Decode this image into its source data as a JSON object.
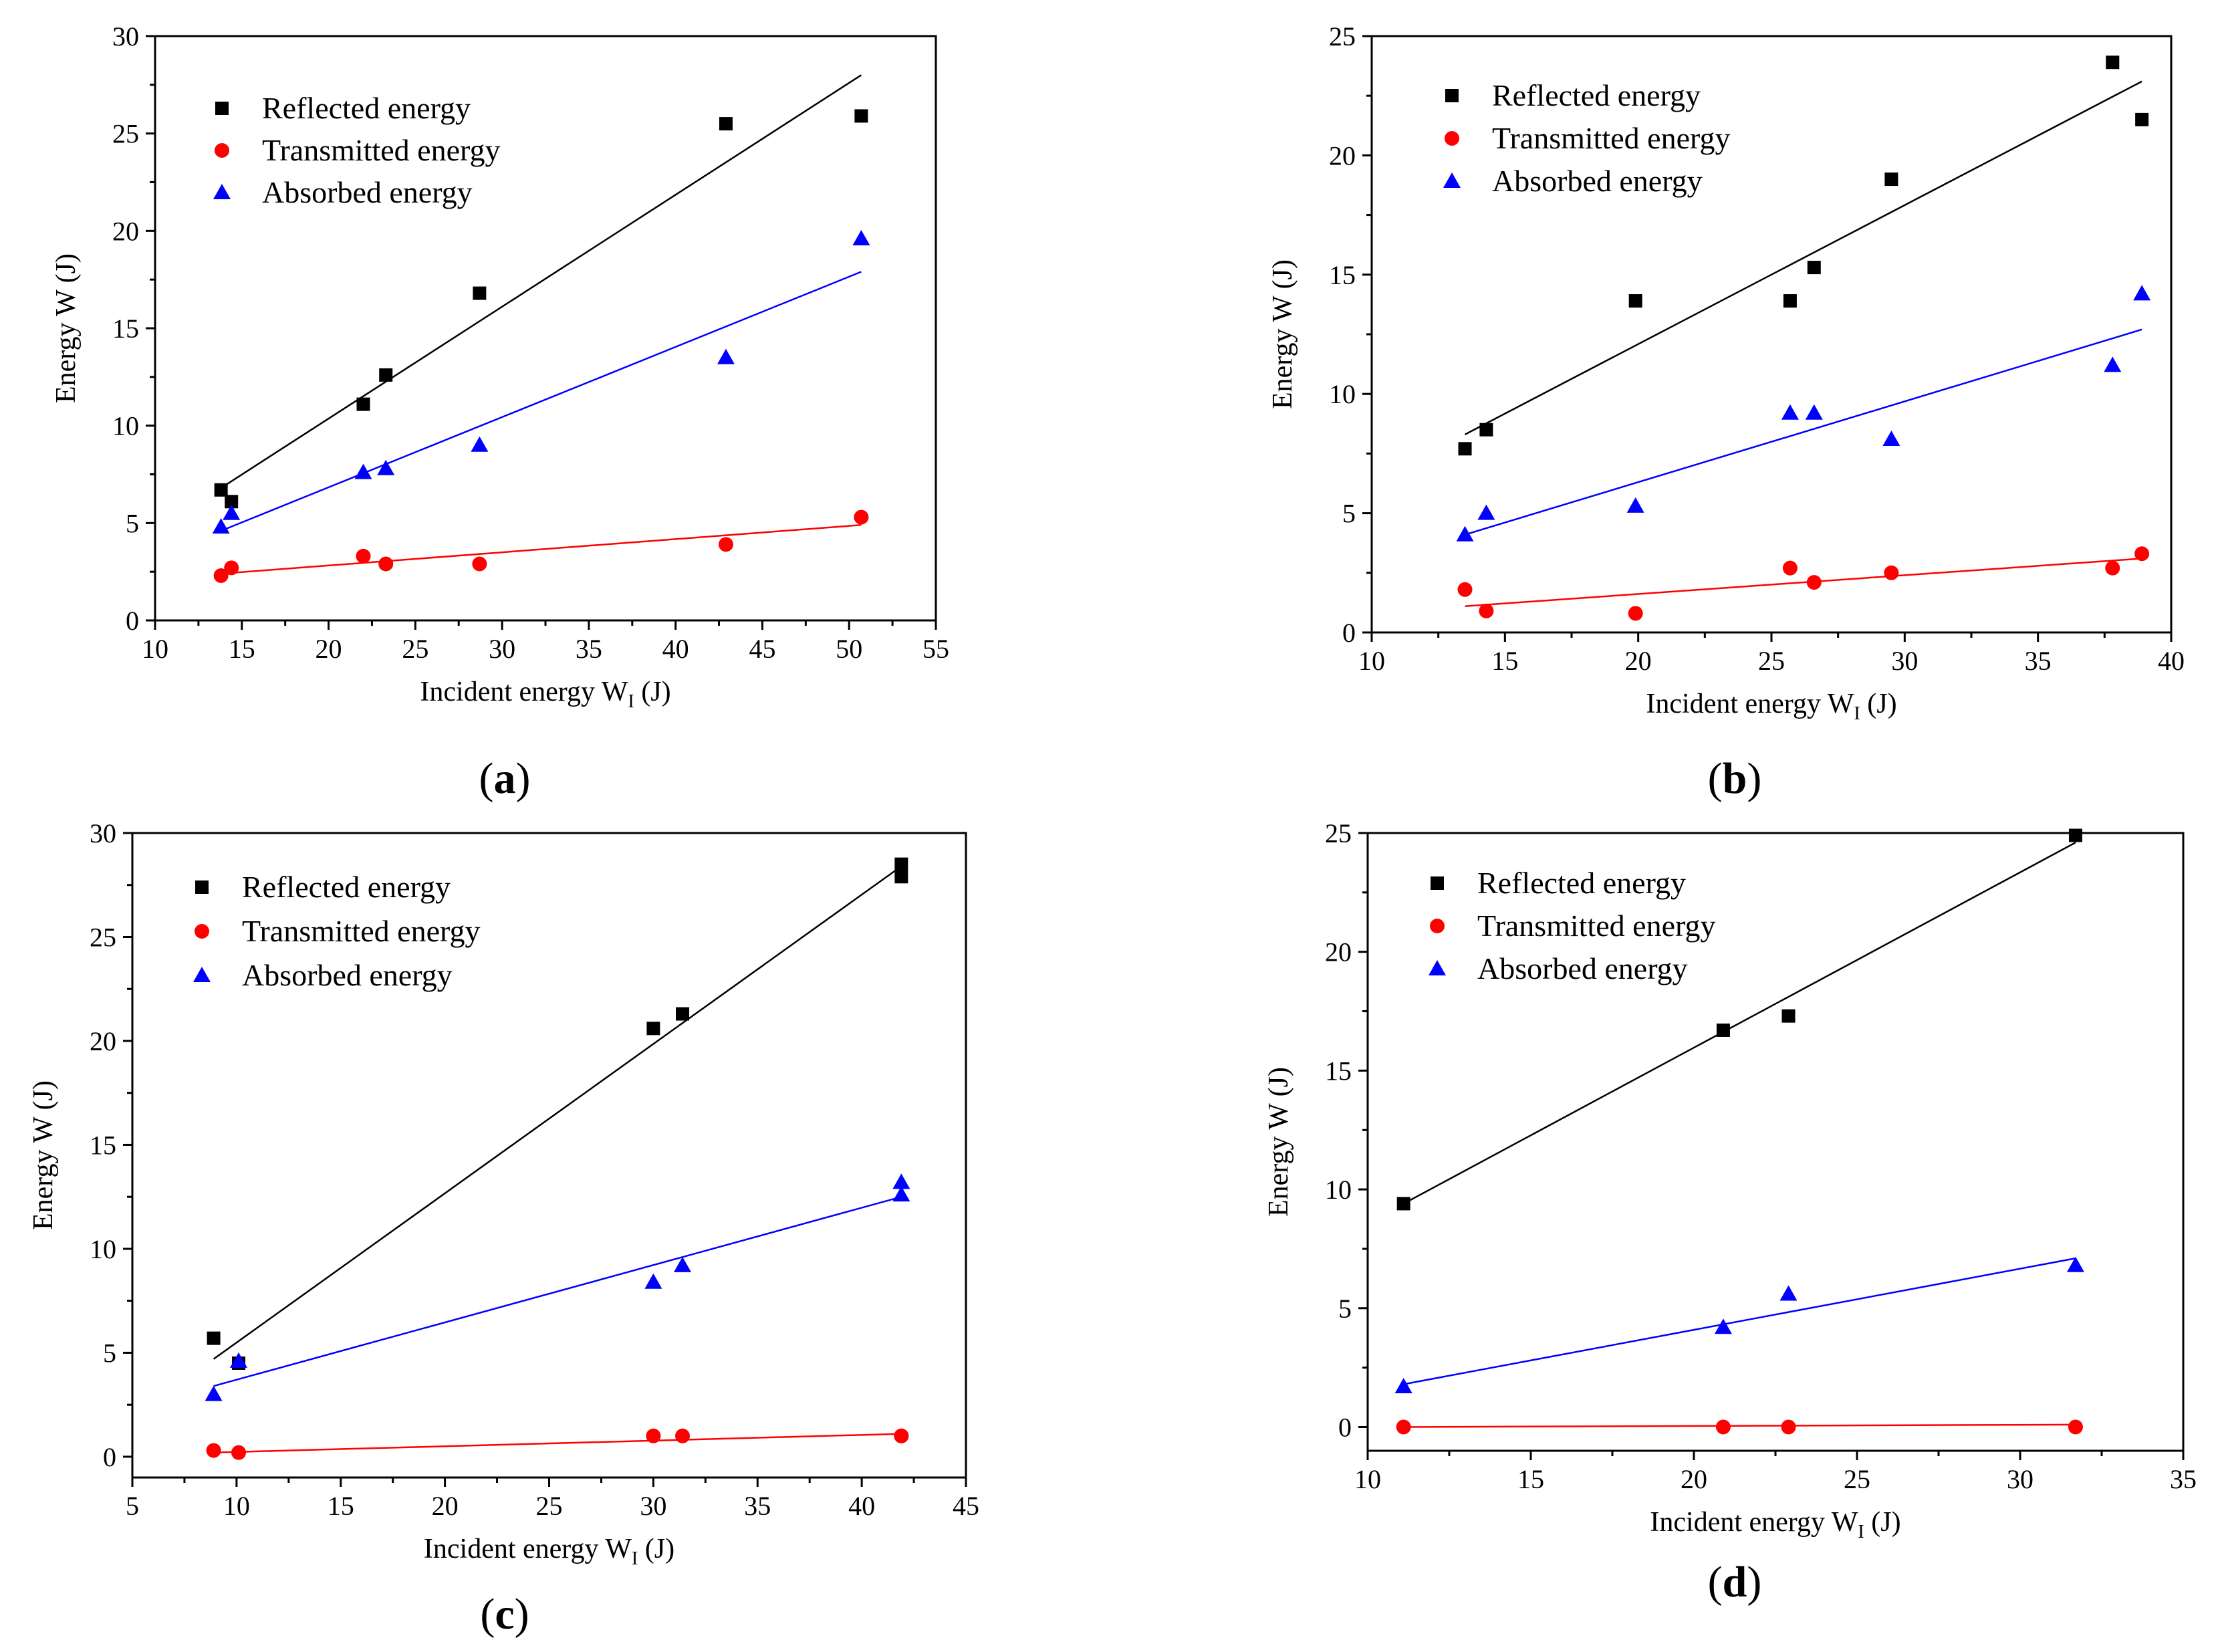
{
  "colors": {
    "reflected": "#000000",
    "transmitted": "#ff0000",
    "absorbed": "#0000ff",
    "axis": "#000000",
    "background": "#ffffff"
  },
  "chart_data": [
    {
      "id": "a",
      "type": "scatter",
      "panel_label": "a",
      "xlabel": "Incident energy W",
      "xlabel_sub": "I",
      "xlabel_unit": " (J)",
      "ylabel": "Energy W (J)",
      "xlim": [
        10,
        55
      ],
      "ylim": [
        0,
        30
      ],
      "xticks": [
        10,
        15,
        20,
        25,
        30,
        35,
        40,
        45,
        50,
        55
      ],
      "yticks": [
        0,
        5,
        10,
        15,
        20,
        25,
        30
      ],
      "legend_position": "top-left",
      "series": [
        {
          "key": "reflected",
          "name": "Reflected energy",
          "marker": "square",
          "x": [
            13.8,
            14.4,
            22.0,
            23.3,
            28.7,
            42.9,
            50.7
          ],
          "y": [
            6.7,
            6.1,
            11.1,
            12.6,
            16.8,
            25.5,
            25.9
          ],
          "fit": {
            "x": [
              13.8,
              50.7
            ],
            "y": [
              6.8,
              28.0
            ]
          }
        },
        {
          "key": "transmitted",
          "name": "Transmitted energy",
          "marker": "circle",
          "x": [
            13.8,
            14.4,
            22.0,
            23.3,
            28.7,
            42.9,
            50.7
          ],
          "y": [
            2.3,
            2.7,
            3.3,
            2.9,
            2.9,
            3.9,
            5.3
          ],
          "fit": {
            "x": [
              13.8,
              50.7
            ],
            "y": [
              2.4,
              4.9
            ]
          }
        },
        {
          "key": "absorbed",
          "name": "Absorbed energy",
          "marker": "triangle",
          "x": [
            13.8,
            14.4,
            22.0,
            23.3,
            28.7,
            42.9,
            50.7
          ],
          "y": [
            4.8,
            5.5,
            7.6,
            7.8,
            9.0,
            13.5,
            19.6
          ],
          "fit": {
            "x": [
              13.8,
              50.7
            ],
            "y": [
              4.6,
              17.9
            ]
          }
        }
      ]
    },
    {
      "id": "b",
      "type": "scatter",
      "panel_label": "b",
      "xlabel": "Incident energy W",
      "xlabel_sub": "I",
      "xlabel_unit": " (J)",
      "ylabel": "Energy W (J)",
      "xlim": [
        10,
        40
      ],
      "ylim": [
        0,
        25
      ],
      "xticks": [
        10,
        15,
        20,
        25,
        30,
        35,
        40
      ],
      "yticks": [
        0,
        5,
        10,
        15,
        20,
        25
      ],
      "legend_position": "top-left",
      "series": [
        {
          "key": "reflected",
          "name": "Reflected energy",
          "marker": "square",
          "x": [
            13.5,
            14.3,
            19.9,
            25.7,
            26.6,
            29.5,
            37.8,
            38.9
          ],
          "y": [
            7.7,
            8.5,
            13.9,
            13.9,
            15.3,
            19.0,
            23.9,
            21.5
          ],
          "fit": {
            "x": [
              13.5,
              38.9
            ],
            "y": [
              8.3,
              23.1
            ]
          }
        },
        {
          "key": "transmitted",
          "name": "Transmitted energy",
          "marker": "circle",
          "x": [
            13.5,
            14.3,
            19.9,
            25.7,
            26.6,
            29.5,
            37.8,
            38.9
          ],
          "y": [
            1.8,
            0.9,
            0.8,
            2.7,
            2.1,
            2.5,
            2.7,
            3.3
          ],
          "fit": {
            "x": [
              13.5,
              38.9
            ],
            "y": [
              1.1,
              3.1
            ]
          }
        },
        {
          "key": "absorbed",
          "name": "Absorbed energy",
          "marker": "triangle",
          "x": [
            13.5,
            14.3,
            19.9,
            25.7,
            26.6,
            29.5,
            37.8,
            38.9
          ],
          "y": [
            4.1,
            5.0,
            5.3,
            9.2,
            9.2,
            8.1,
            11.2,
            14.2
          ],
          "fit": {
            "x": [
              13.5,
              38.9
            ],
            "y": [
              4.1,
              12.7
            ]
          }
        }
      ]
    },
    {
      "id": "c",
      "type": "scatter",
      "panel_label": "c",
      "xlabel": "Incident energy W",
      "xlabel_sub": "I",
      "xlabel_unit": " (J)",
      "ylabel": "Energy W (J)",
      "xlim": [
        5,
        45
      ],
      "ylim": [
        -1,
        30
      ],
      "xticks": [
        5,
        10,
        15,
        20,
        25,
        30,
        35,
        40,
        45
      ],
      "yticks": [
        0,
        5,
        10,
        15,
        20,
        25,
        30
      ],
      "legend_position": "top-left",
      "series": [
        {
          "key": "reflected",
          "name": "Reflected energy",
          "marker": "square",
          "x": [
            8.9,
            10.1,
            30.0,
            31.4,
            41.9,
            41.9
          ],
          "y": [
            5.7,
            4.5,
            20.6,
            21.3,
            28.5,
            27.9
          ],
          "fit": {
            "x": [
              8.9,
              41.9
            ],
            "y": [
              4.7,
              28.4
            ]
          }
        },
        {
          "key": "transmitted",
          "name": "Transmitted energy",
          "marker": "circle",
          "x": [
            8.9,
            10.1,
            30.0,
            31.4,
            41.9,
            41.9
          ],
          "y": [
            0.3,
            0.2,
            1.0,
            1.0,
            1.0,
            1.0
          ],
          "fit": {
            "x": [
              8.9,
              41.9
            ],
            "y": [
              0.2,
              1.1
            ]
          }
        },
        {
          "key": "absorbed",
          "name": "Absorbed energy",
          "marker": "triangle",
          "x": [
            8.9,
            10.1,
            30.0,
            31.4,
            41.9,
            41.9
          ],
          "y": [
            3.0,
            4.6,
            8.4,
            9.2,
            13.2,
            12.6
          ],
          "fit": {
            "x": [
              8.9,
              41.9
            ],
            "y": [
              3.4,
              12.5
            ]
          }
        }
      ]
    },
    {
      "id": "d",
      "type": "scatter",
      "panel_label": "d",
      "xlabel": "Incident energy W",
      "xlabel_sub": "I",
      "xlabel_unit": " (J)",
      "ylabel": "Energy W (J)",
      "xlim": [
        10,
        35
      ],
      "ylim": [
        -1,
        25
      ],
      "xticks": [
        10,
        15,
        20,
        25,
        30,
        35
      ],
      "yticks": [
        0,
        5,
        10,
        15,
        20,
        25
      ],
      "legend_position": "top-left",
      "series": [
        {
          "key": "reflected",
          "name": "Reflected energy",
          "marker": "square",
          "x": [
            11.1,
            20.9,
            22.9,
            31.7
          ],
          "y": [
            9.4,
            16.7,
            17.3,
            24.9
          ],
          "fit": {
            "x": [
              11.1,
              31.7
            ],
            "y": [
              9.4,
              24.6
            ]
          }
        },
        {
          "key": "transmitted",
          "name": "Transmitted energy",
          "marker": "circle",
          "x": [
            11.1,
            20.9,
            22.9,
            31.7
          ],
          "y": [
            0.0,
            0.0,
            0.0,
            0.0
          ],
          "fit": {
            "x": [
              11.1,
              31.7
            ],
            "y": [
              0.0,
              0.1
            ]
          }
        },
        {
          "key": "absorbed",
          "name": "Absorbed energy",
          "marker": "triangle",
          "x": [
            11.1,
            20.9,
            22.9,
            31.7
          ],
          "y": [
            1.7,
            4.2,
            5.6,
            6.8
          ],
          "fit": {
            "x": [
              11.1,
              31.7
            ],
            "y": [
              1.8,
              7.1
            ]
          }
        }
      ]
    }
  ]
}
